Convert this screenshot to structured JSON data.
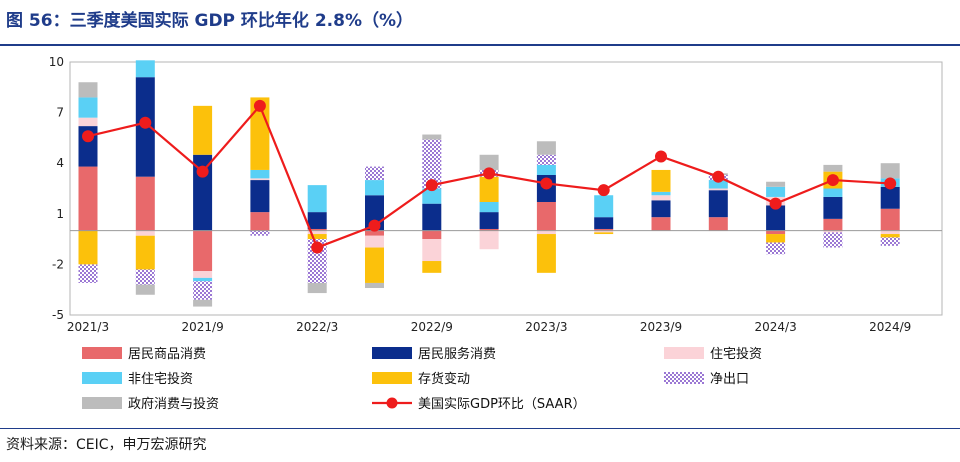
{
  "header": {
    "title": "图 56：三季度美国实际 GDP 环比年化 2.8%（%）"
  },
  "footer": {
    "source": "资料来源：CEIC，申万宏源研究"
  },
  "chart_data": {
    "type": "bar",
    "stacked": true,
    "title": "三季度美国实际 GDP 环比年化 2.8%（%）",
    "categories": [
      "2021/3",
      "2021/6",
      "2021/9",
      "2021/12",
      "2022/3",
      "2022/6",
      "2022/9",
      "2022/12",
      "2023/3",
      "2023/6",
      "2023/9",
      "2023/12",
      "2024/3",
      "2024/6",
      "2024/9"
    ],
    "x_tick_labels": [
      "2021/3",
      "2021/9",
      "2022/3",
      "2022/9",
      "2023/3",
      "2023/9",
      "2024/3",
      "2024/9"
    ],
    "ylim": [
      -5,
      10
    ],
    "y_ticks": [
      10,
      7,
      4,
      1,
      -2,
      -5
    ],
    "series": [
      {
        "name": "居民商品消费",
        "color": "#e8696b",
        "pattern": false,
        "values": [
          3.8,
          3.2,
          -2.4,
          1.1,
          0.1,
          -0.3,
          -0.5,
          0.1,
          1.7,
          0.1,
          0.8,
          0.8,
          -0.2,
          0.7,
          1.3
        ]
      },
      {
        "name": "居民服务消费",
        "color": "#0b2d8c",
        "pattern": false,
        "values": [
          2.4,
          5.9,
          4.5,
          1.9,
          1.0,
          2.1,
          1.6,
          1.0,
          1.6,
          0.7,
          1.0,
          1.6,
          1.5,
          1.3,
          1.3
        ]
      },
      {
        "name": "住宅投资",
        "color": "#fbd3d8",
        "pattern": false,
        "values": [
          0.5,
          -0.3,
          -0.4,
          0.1,
          -0.2,
          -0.7,
          -1.3,
          -1.1,
          -0.2,
          -0.1,
          0.3,
          0.1,
          0.5,
          -0.1,
          -0.2
        ]
      },
      {
        "name": "非住宅投资",
        "color": "#5ad0f5",
        "pattern": false,
        "values": [
          1.2,
          1.0,
          -0.2,
          0.5,
          1.6,
          0.9,
          0.9,
          0.6,
          0.6,
          1.3,
          0.2,
          0.5,
          0.6,
          0.5,
          0.5
        ]
      },
      {
        "name": "存货变动",
        "color": "#fcc10b",
        "pattern": false,
        "values": [
          -2.0,
          -2.0,
          2.9,
          4.3,
          -0.3,
          -2.1,
          -0.7,
          1.5,
          -2.3,
          -0.1,
          1.3,
          0.0,
          -0.5,
          1.0,
          -0.2
        ]
      },
      {
        "name": "净出口",
        "color": "#9b78d4",
        "pattern": true,
        "values": [
          -1.1,
          -0.9,
          -1.1,
          -0.3,
          -2.6,
          0.8,
          2.9,
          0.4,
          0.6,
          0.0,
          0.0,
          0.3,
          -0.7,
          -0.9,
          -0.5
        ]
      },
      {
        "name": "政府消费与投资",
        "color": "#bcbcbc",
        "pattern": false,
        "values": [
          0.9,
          -0.6,
          -0.4,
          0.0,
          -0.6,
          -0.3,
          0.3,
          0.9,
          0.8,
          0.0,
          0.0,
          0.1,
          0.3,
          0.4,
          0.9
        ]
      }
    ],
    "line": {
      "name": "美国实际GDP环比（SAAR）",
      "color": "#ee1c1c",
      "values": [
        5.6,
        6.4,
        3.5,
        7.4,
        -1.0,
        0.3,
        2.7,
        3.4,
        2.8,
        2.4,
        4.4,
        3.2,
        1.6,
        3.0,
        2.8
      ]
    },
    "legend_columns": [
      [
        "居民商品消费",
        "非住宅投资",
        "政府消费与投资"
      ],
      [
        "居民服务消费",
        "存货变动",
        "美国实际GDP环比（SAAR）"
      ],
      [
        "住宅投资",
        "净出口"
      ]
    ]
  }
}
